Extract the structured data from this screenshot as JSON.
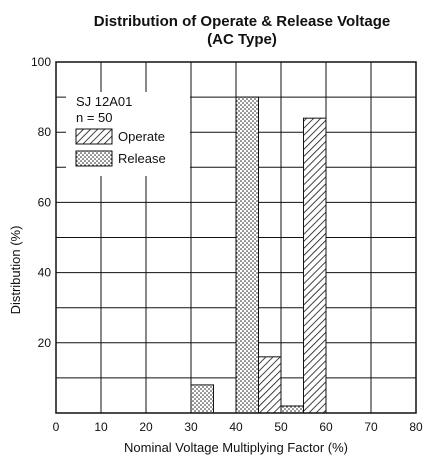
{
  "chart_data": {
    "type": "bar",
    "title": "Distribution of Operate & Release Voltage",
    "subtitle": "(AC Type)",
    "xlabel": "Nominal Voltage Multiplying Factor (%)",
    "ylabel": "Distribution (%)",
    "xlim": [
      0,
      80
    ],
    "ylim": [
      0,
      100
    ],
    "x_ticks": [
      "0",
      "10",
      "20",
      "30",
      "40",
      "50",
      "60",
      "70",
      "80"
    ],
    "y_ticks": [
      "20",
      "40",
      "60",
      "80",
      "100"
    ],
    "grid": true,
    "legend_position": "top-left",
    "annotations": [
      "SJ 12A01",
      "n = 50"
    ],
    "series": [
      {
        "name": "Operate",
        "pattern": "hatched",
        "bars": [
          {
            "x_start": 45,
            "x_end": 50,
            "value": 16
          },
          {
            "x_start": 55,
            "x_end": 60,
            "value": 84
          }
        ]
      },
      {
        "name": "Release",
        "pattern": "dotted",
        "bars": [
          {
            "x_start": 30,
            "x_end": 35,
            "value": 8
          },
          {
            "x_start": 40,
            "x_end": 45,
            "value": 90
          },
          {
            "x_start": 50,
            "x_end": 55,
            "value": 2
          }
        ]
      }
    ]
  }
}
